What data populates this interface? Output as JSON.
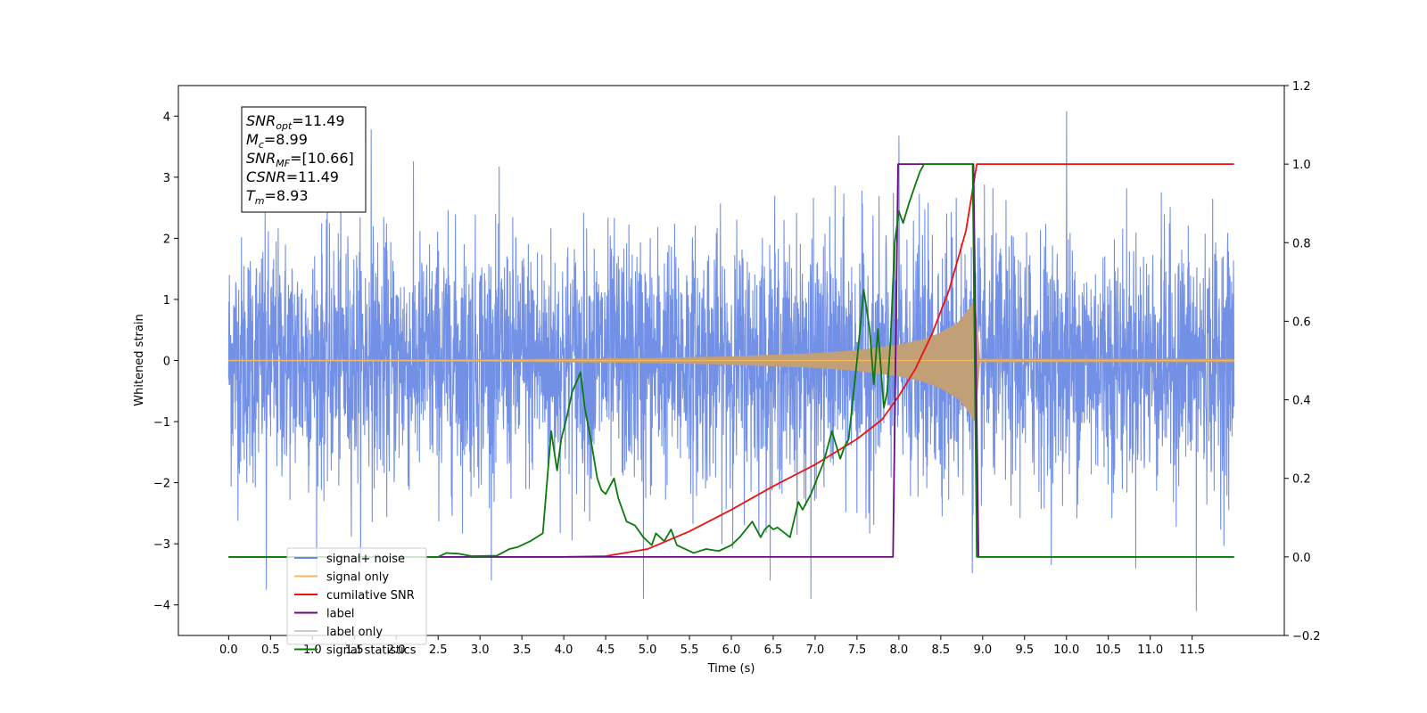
{
  "chart_data": {
    "type": "line",
    "xlabel": "Time (s)",
    "ylabel": "Whitened strain",
    "xlim": [
      -0.6,
      12.6
    ],
    "ylim": [
      -4.5,
      4.5
    ],
    "y2lim": [
      -0.2,
      1.2
    ],
    "x_ticks": [
      "0.0",
      "0.5",
      "1.0",
      "1.5",
      "2.0",
      "2.5",
      "3.0",
      "3.5",
      "4.0",
      "4.5",
      "5.0",
      "5.5",
      "6.0",
      "6.5",
      "7.0",
      "7.5",
      "8.0",
      "8.5",
      "9.0",
      "9.5",
      "10.0",
      "10.5",
      "11.0",
      "11.5"
    ],
    "y_ticks": [
      "4",
      "3",
      "2",
      "1",
      "0",
      "−1",
      "−2",
      "−3",
      "−4"
    ],
    "y2_ticks": [
      "1.2",
      "1.0",
      "0.8",
      "0.6",
      "0.4",
      "0.2",
      "0.0",
      "−0.2"
    ],
    "grid": false,
    "legend_position": "lower-left",
    "annotation": [
      {
        "base": "SNR",
        "sub": "opt",
        "rest": "=11.49"
      },
      {
        "base": "M",
        "sub": "c",
        "rest": "=8.99"
      },
      {
        "base": "SNR",
        "sub": "MF",
        "rest": "=[10.66]"
      },
      {
        "base": "CSNR",
        "sub": "",
        "rest": "=11.49"
      },
      {
        "base": "T",
        "sub": "m",
        "rest": "=8.93"
      }
    ],
    "series": [
      {
        "name": "signal+ noise",
        "axis": "left",
        "color": "#6b8ae6",
        "description_x_range": [
          0.0,
          12.0
        ],
        "noise_sigma": 1.0,
        "extremes": [
          [
            0.45,
            -3.75
          ],
          [
            10.0,
            4.08
          ],
          [
            11.55,
            -4.1
          ],
          [
            8.0,
            3.68
          ],
          [
            1.7,
            3.78
          ],
          [
            4.95,
            -3.9
          ],
          [
            6.95,
            -3.9
          ]
        ]
      },
      {
        "name": "signal only",
        "axis": "left",
        "color": "#f5b95c",
        "x": [
          0.0,
          3.0,
          5.0,
          6.0,
          7.0,
          7.5,
          8.0,
          8.3,
          8.5,
          8.7,
          8.8,
          8.93,
          8.95,
          12.0
        ],
        "amplitude": [
          0.01,
          0.02,
          0.04,
          0.07,
          0.12,
          0.17,
          0.26,
          0.35,
          0.46,
          0.62,
          0.78,
          1.05,
          0.03,
          0.03
        ]
      },
      {
        "name": "cumilative SNR",
        "axis": "right",
        "color": "#ee1111",
        "x": [
          0.0,
          4.0,
          4.5,
          5.0,
          5.5,
          6.0,
          6.5,
          7.0,
          7.5,
          7.8,
          8.0,
          8.2,
          8.4,
          8.6,
          8.8,
          8.93,
          12.0
        ],
        "values": [
          0.0,
          0.0,
          0.002,
          0.02,
          0.065,
          0.12,
          0.18,
          0.235,
          0.3,
          0.35,
          0.41,
          0.48,
          0.57,
          0.68,
          0.83,
          1.0,
          1.0
        ]
      },
      {
        "name": "label",
        "axis": "right",
        "color": "#6a0b84",
        "x": [
          0.0,
          7.93,
          7.99,
          8.89,
          8.95,
          12.0
        ],
        "values": [
          0.0,
          0.0,
          1.0,
          1.0,
          0.0,
          0.0
        ]
      },
      {
        "name": "label only",
        "axis": "right",
        "color": "#cccccc",
        "x": [],
        "values": []
      },
      {
        "name": "signal statistics",
        "axis": "right",
        "color": "#0a7a0a",
        "x": [
          0.0,
          2.5,
          2.6,
          2.75,
          2.9,
          3.2,
          3.35,
          3.45,
          3.6,
          3.75,
          3.85,
          3.92,
          3.97,
          4.03,
          4.1,
          4.2,
          4.25,
          4.33,
          4.4,
          4.45,
          4.5,
          4.6,
          4.65,
          4.75,
          4.85,
          4.95,
          5.0,
          5.05,
          5.1,
          5.2,
          5.28,
          5.35,
          5.45,
          5.55,
          5.7,
          5.85,
          6.0,
          6.1,
          6.25,
          6.35,
          6.4,
          6.45,
          6.5,
          6.55,
          6.7,
          6.8,
          6.85,
          6.95,
          7.1,
          7.2,
          7.3,
          7.35,
          7.4,
          7.5,
          7.58,
          7.65,
          7.7,
          7.75,
          7.82,
          7.86,
          7.9,
          7.95,
          8.0,
          8.05,
          8.12,
          8.2,
          8.25,
          8.3,
          8.35,
          8.4,
          8.45,
          8.5,
          8.55,
          8.6,
          8.7,
          8.8,
          8.88,
          8.93,
          8.98,
          12.0
        ],
        "values": [
          0.0,
          0.0,
          0.01,
          0.008,
          0.002,
          0.003,
          0.02,
          0.025,
          0.04,
          0.06,
          0.32,
          0.22,
          0.3,
          0.35,
          0.42,
          0.47,
          0.38,
          0.29,
          0.2,
          0.17,
          0.16,
          0.2,
          0.15,
          0.09,
          0.08,
          0.05,
          0.04,
          0.03,
          0.06,
          0.04,
          0.07,
          0.03,
          0.02,
          0.01,
          0.02,
          0.015,
          0.03,
          0.05,
          0.09,
          0.05,
          0.07,
          0.08,
          0.07,
          0.075,
          0.05,
          0.14,
          0.12,
          0.16,
          0.24,
          0.32,
          0.25,
          0.28,
          0.3,
          0.5,
          0.68,
          0.58,
          0.44,
          0.58,
          0.38,
          0.42,
          0.55,
          0.8,
          0.88,
          0.85,
          0.9,
          0.95,
          0.98,
          1.0,
          1.0,
          1.0,
          1.0,
          1.0,
          1.0,
          1.0,
          1.0,
          1.0,
          1.0,
          0.0,
          0.0,
          0.0
        ]
      }
    ]
  }
}
